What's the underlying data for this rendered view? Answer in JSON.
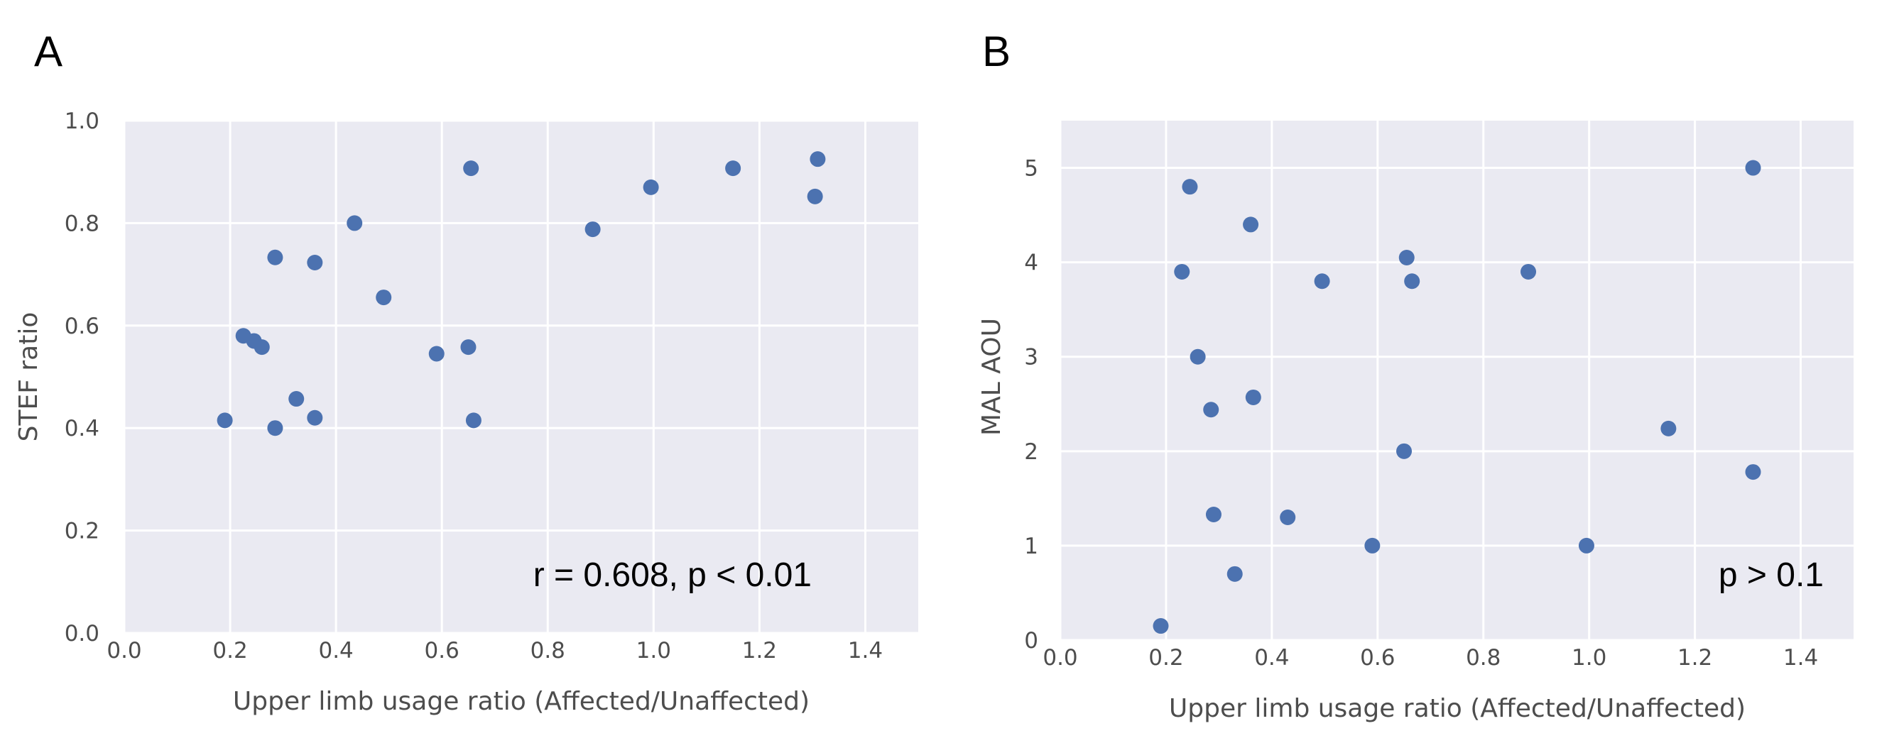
{
  "chart_data": [
    {
      "type": "scatter",
      "panel_label": "A",
      "xlabel": "Upper limb usage ratio (Affected/Unaffected)",
      "ylabel": "STEF ratio",
      "xlim": [
        0.0,
        1.5
      ],
      "ylim": [
        0.0,
        1.0
      ],
      "xticks": [
        "0.0",
        "0.2",
        "0.4",
        "0.6",
        "0.8",
        "1.0",
        "1.2",
        "1.4"
      ],
      "yticks": [
        "0.0",
        "0.2",
        "0.4",
        "0.6",
        "0.8",
        "1.0"
      ],
      "grid": true,
      "annotation": "r = 0.608, p < 0.01",
      "color": "#4c72b0",
      "points": [
        [
          0.19,
          0.415
        ],
        [
          0.225,
          0.58
        ],
        [
          0.245,
          0.57
        ],
        [
          0.26,
          0.558
        ],
        [
          0.285,
          0.4
        ],
        [
          0.285,
          0.733
        ],
        [
          0.325,
          0.457
        ],
        [
          0.36,
          0.42
        ],
        [
          0.36,
          0.723
        ],
        [
          0.435,
          0.8
        ],
        [
          0.49,
          0.655
        ],
        [
          0.59,
          0.545
        ],
        [
          0.65,
          0.558
        ],
        [
          0.655,
          0.907
        ],
        [
          0.66,
          0.415
        ],
        [
          0.885,
          0.788
        ],
        [
          0.995,
          0.87
        ],
        [
          1.15,
          0.907
        ],
        [
          1.31,
          0.925
        ],
        [
          1.305,
          0.852
        ]
      ]
    },
    {
      "type": "scatter",
      "panel_label": "B",
      "xlabel": "Upper limb usage ratio (Affected/Unaffected)",
      "ylabel": "MAL AOU",
      "xlim": [
        0.0,
        1.5
      ],
      "ylim": [
        0,
        5.5
      ],
      "xticks": [
        "0.0",
        "0.2",
        "0.4",
        "0.6",
        "0.8",
        "1.0",
        "1.2",
        "1.4"
      ],
      "yticks": [
        "0",
        "1",
        "2",
        "3",
        "4",
        "5"
      ],
      "grid": true,
      "annotation": "p > 0.1",
      "color": "#4c72b0",
      "points": [
        [
          0.19,
          0.15
        ],
        [
          0.23,
          3.9
        ],
        [
          0.245,
          4.8
        ],
        [
          0.26,
          3.0
        ],
        [
          0.285,
          2.44
        ],
        [
          0.29,
          1.33
        ],
        [
          0.33,
          0.7
        ],
        [
          0.36,
          4.4
        ],
        [
          0.365,
          2.57
        ],
        [
          0.43,
          1.3
        ],
        [
          0.495,
          3.8
        ],
        [
          0.59,
          1.0
        ],
        [
          0.65,
          2.0
        ],
        [
          0.655,
          4.05
        ],
        [
          0.665,
          3.8
        ],
        [
          0.885,
          3.9
        ],
        [
          0.995,
          1.0
        ],
        [
          1.15,
          2.24
        ],
        [
          1.31,
          5.0
        ],
        [
          1.31,
          1.78
        ]
      ]
    }
  ]
}
